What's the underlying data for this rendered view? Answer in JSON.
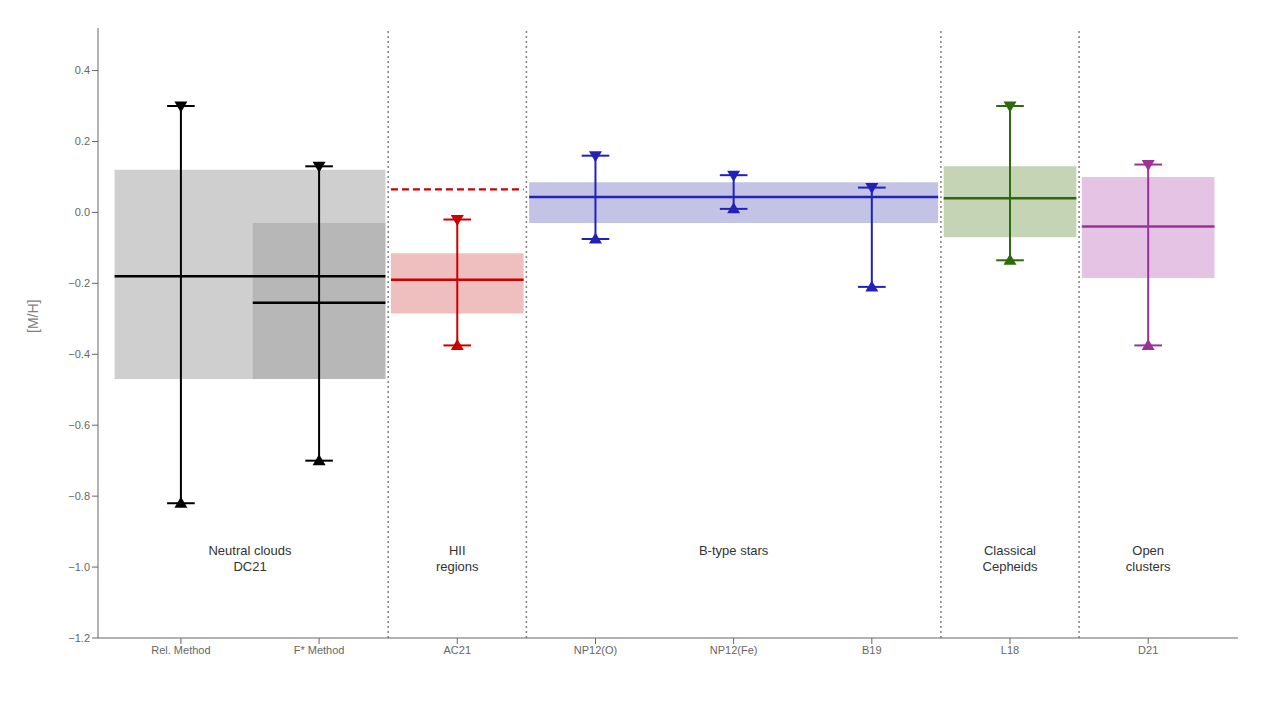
{
  "chart_data": {
    "type": "box",
    "ylabel": "[M/H]",
    "categories": [
      "Rel. Method",
      "F* Method",
      "AC21",
      "NP12(O)",
      "NP12(Fe)",
      "B19",
      "L18",
      "D21"
    ],
    "ylim": [
      -1.2,
      0.52
    ],
    "yticks": [
      0.4,
      0.2,
      {
        "value": 0.0,
        "label": "0.0"
      },
      {
        "value": -0.2,
        "label": "−0.2"
      },
      {
        "value": -0.4,
        "label": "−0.4"
      },
      {
        "value": -0.6,
        "label": "−0.6"
      },
      {
        "value": -0.8,
        "label": "−0.8"
      },
      {
        "value": -1.0,
        "label": "−1.0"
      },
      {
        "value": -1.2,
        "label": "−1.2"
      }
    ],
    "grid": false,
    "boxes": [
      {
        "from": "Rel. Method",
        "to": "F* Method",
        "top": 0.12,
        "bottom": -0.47,
        "center": -0.18,
        "color": "black",
        "box_color": "#a0a0a0"
      },
      {
        "from": "F* Method",
        "to": "F* Method",
        "top": -0.03,
        "bottom": -0.47,
        "center": -0.255,
        "color": "black",
        "box_color": "#a0a0a0"
      },
      {
        "from": "AC21",
        "to": "AC21",
        "top": -0.115,
        "bottom": -0.285,
        "center": -0.19,
        "color": "#cc0000",
        "box_color": "#e08080"
      },
      {
        "from": "NP12(O)",
        "to": "B19",
        "top": 0.085,
        "bottom": -0.03,
        "center": 0.04333333333333333,
        "color": "#2222bb",
        "box_color": "#8888cc"
      },
      {
        "from": "L18",
        "to": "L18",
        "top": 0.13,
        "bottom": -0.07,
        "center": 0.04,
        "color": "#2d6a0a",
        "box_color": "#8aaa6a"
      },
      {
        "from": "D21",
        "to": "D21",
        "top": 0.1,
        "bottom": -0.185,
        "center": -0.04,
        "color": "#993399",
        "box_color": "#cc88cc"
      }
    ],
    "whiskers": [
      {
        "category": "Rel. Method",
        "top": 0.3,
        "bottom": -0.82,
        "color": "black"
      },
      {
        "category": "F* Method",
        "top": 0.13,
        "bottom": -0.7,
        "color": "black"
      },
      {
        "category": "AC21",
        "top": -0.02,
        "bottom": -0.375,
        "color": "#cc0000"
      },
      {
        "category": "NP12(O)",
        "top": 0.16,
        "bottom": -0.075,
        "color": "#2222bb"
      },
      {
        "category": "NP12(Fe)",
        "top": 0.105,
        "bottom": 0.01,
        "color": "#2222bb"
      },
      {
        "category": "B19",
        "top": 0.07,
        "bottom": -0.21,
        "color": "#2222bb"
      },
      {
        "category": "L18",
        "top": 0.3,
        "bottom": -0.135,
        "color": "#2d6a0a"
      },
      {
        "category": "D21",
        "top": 0.135,
        "bottom": -0.375,
        "color": "#993399"
      }
    ],
    "groups": [
      {
        "text": "Neutral clouds\nDC21",
        "from": "Rel. Method",
        "to": "F* Method"
      },
      {
        "text": "HII\nregions",
        "from": "AC21",
        "to": "AC21"
      },
      {
        "text": "B-type stars",
        "from": "NP12(O)",
        "to": "B19"
      },
      {
        "text": "Classical\nCepheids",
        "from": "L18",
        "to": "L18"
      },
      {
        "text": "Open\nclusters",
        "from": "D21",
        "to": "D21"
      }
    ],
    "reference_lines": [
      {
        "y": 0.065,
        "category": "AC21",
        "color": "#cc0000",
        "line_style": "dashed"
      }
    ]
  }
}
